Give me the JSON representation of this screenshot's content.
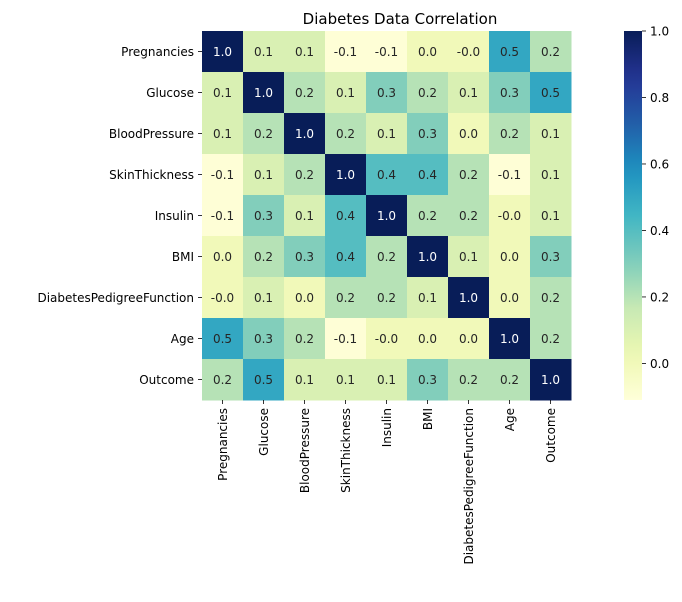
{
  "chart_data": {
    "type": "heatmap",
    "title": "Diabetes Data Correlation",
    "variables": [
      "Pregnancies",
      "Glucose",
      "BloodPressure",
      "SkinThickness",
      "Insulin",
      "BMI",
      "DiabetesPedigreeFunction",
      "Age",
      "Outcome"
    ],
    "matrix": [
      [
        1.0,
        0.1,
        0.1,
        -0.1,
        -0.1,
        0.0,
        -0.0,
        0.5,
        0.2
      ],
      [
        0.1,
        1.0,
        0.2,
        0.1,
        0.3,
        0.2,
        0.1,
        0.3,
        0.5
      ],
      [
        0.1,
        0.2,
        1.0,
        0.2,
        0.1,
        0.3,
        0.0,
        0.2,
        0.1
      ],
      [
        -0.1,
        0.1,
        0.2,
        1.0,
        0.4,
        0.4,
        0.2,
        -0.1,
        0.1
      ],
      [
        -0.1,
        0.3,
        0.1,
        0.4,
        1.0,
        0.2,
        0.2,
        -0.0,
        0.1
      ],
      [
        0.0,
        0.2,
        0.3,
        0.4,
        0.2,
        1.0,
        0.1,
        0.0,
        0.3
      ],
      [
        -0.0,
        0.1,
        0.0,
        0.2,
        0.2,
        0.1,
        1.0,
        0.0,
        0.2
      ],
      [
        0.5,
        0.3,
        0.2,
        -0.1,
        -0.0,
        0.0,
        0.0,
        1.0,
        0.2
      ],
      [
        0.2,
        0.5,
        0.1,
        0.1,
        0.1,
        0.3,
        0.2,
        0.2,
        1.0
      ]
    ],
    "labels": [
      [
        "1.0",
        "0.1",
        "0.1",
        "-0.1",
        "-0.1",
        "0.0",
        "-0.0",
        "0.5",
        "0.2"
      ],
      [
        "0.1",
        "1.0",
        "0.2",
        "0.1",
        "0.3",
        "0.2",
        "0.1",
        "0.3",
        "0.5"
      ],
      [
        "0.1",
        "0.2",
        "1.0",
        "0.2",
        "0.1",
        "0.3",
        "0.0",
        "0.2",
        "0.1"
      ],
      [
        "-0.1",
        "0.1",
        "0.2",
        "1.0",
        "0.4",
        "0.4",
        "0.2",
        "-0.1",
        "0.1"
      ],
      [
        "-0.1",
        "0.3",
        "0.1",
        "0.4",
        "1.0",
        "0.2",
        "0.2",
        "-0.0",
        "0.1"
      ],
      [
        "0.0",
        "0.2",
        "0.3",
        "0.4",
        "0.2",
        "1.0",
        "0.1",
        "0.0",
        "0.3"
      ],
      [
        "-0.0",
        "0.1",
        "0.0",
        "0.2",
        "0.2",
        "0.1",
        "1.0",
        "0.0",
        "0.2"
      ],
      [
        "0.5",
        "0.3",
        "0.2",
        "-0.1",
        "-0.0",
        "0.0",
        "0.0",
        "1.0",
        "0.2"
      ],
      [
        "0.2",
        "0.5",
        "0.1",
        "0.1",
        "0.1",
        "0.3",
        "0.2",
        "0.2",
        "1.0"
      ]
    ],
    "colormap": "YlGnBu",
    "colorbar": {
      "range": [
        -0.11,
        1.0
      ],
      "ticks": [
        0.0,
        0.2,
        0.4,
        0.6,
        0.8,
        1.0
      ],
      "tick_labels": [
        "0.0",
        "0.2",
        "0.4",
        "0.6",
        "0.8",
        "1.0"
      ]
    },
    "grid": false,
    "legend": "colorbar-right"
  }
}
